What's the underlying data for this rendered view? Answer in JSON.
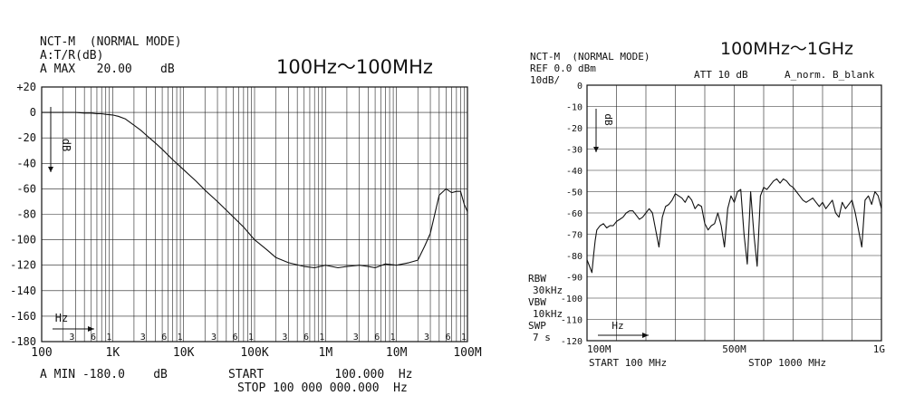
{
  "chart_data": [
    {
      "type": "line",
      "header_lines": [
        "NCT-M  (NORMAL MODE)",
        "A:T/R(dB)",
        "A MAX   20.00    dB"
      ],
      "range_label": "100Hz～100MHz",
      "ylabel": "dB",
      "xlabel": "Hz",
      "x_scale": "log",
      "xlim": [
        100,
        100000000
      ],
      "ylim": [
        -180,
        20
      ],
      "x_tick_labels": [
        "100",
        "1K",
        "10K",
        "100K",
        "1M",
        "10M",
        "100M"
      ],
      "y_tick_labels": [
        "+20",
        "0",
        "-20",
        "-40",
        "-60",
        "-80",
        "-100",
        "-120",
        "-140",
        "-160",
        "-180"
      ],
      "minor_tick_labels": [
        "3",
        "6",
        "1"
      ],
      "footer_left": "A MIN -180.0    dB",
      "footer_start": "START          100.000  Hz",
      "footer_stop": "STOP 100 000 000.000  Hz",
      "grid": true,
      "series": [
        {
          "x": [
            100,
            150,
            200,
            300,
            400,
            500,
            600,
            700,
            800,
            1000,
            1200,
            1500,
            2000,
            2500,
            3000,
            4000,
            5000,
            7000,
            10000,
            15000,
            20000,
            30000,
            50000,
            70000,
            100000,
            150000,
            200000,
            300000,
            500000,
            700000,
            1000000,
            1500000,
            2000000,
            3000000,
            4000000,
            5000000,
            7000000,
            10000000,
            15000000,
            20000000,
            25000000,
            30000000,
            40000000,
            50000000,
            60000000,
            70000000,
            80000000,
            90000000,
            100000000
          ],
          "y": [
            0,
            0,
            0,
            0,
            -0.5,
            -0.5,
            -1,
            -1,
            -1.5,
            -2,
            -3,
            -5,
            -10,
            -14,
            -18,
            -24,
            -29,
            -37,
            -45,
            -54,
            -61,
            -70,
            -82,
            -90,
            -100,
            -108,
            -114,
            -118,
            -121,
            -122,
            -120,
            -122,
            -121,
            -120,
            -121,
            -122,
            -119,
            -120,
            -118,
            -116,
            -105,
            -95,
            -65,
            -60,
            -63,
            -62,
            -62,
            -72,
            -78
          ]
        }
      ]
    },
    {
      "type": "line",
      "header_lines": [
        "NCT-M  (NORMAL MODE)",
        "REF 0.0 dBm",
        "10dB/"
      ],
      "att_label": "ATT 10 dB",
      "trace_label": "A_norm. B_blank",
      "range_label": "100MHz～1GHz",
      "ylabel": "dB",
      "xlabel": "Hz",
      "xlim": [
        100,
        1000
      ],
      "ylim": [
        -120,
        0
      ],
      "x_tick_labels": [
        "100M",
        "500M",
        "1G"
      ],
      "y_tick_labels": [
        "0",
        "-10",
        "-20",
        "-30",
        "-40",
        "-50",
        "-60",
        "-70",
        "-80",
        "-90",
        "-100",
        "-110",
        "-120"
      ],
      "settings_labels": [
        "RBW",
        "30kHz",
        "VBW",
        "10kHz",
        "SWP",
        "7 s"
      ],
      "footer_start": "START 100 MHz",
      "footer_stop": "STOP 1000 MHz",
      "grid": true,
      "series": [
        {
          "x": [
            100,
            110,
            115,
            120,
            125,
            130,
            140,
            150,
            160,
            170,
            180,
            190,
            200,
            210,
            220,
            230,
            240,
            250,
            260,
            270,
            280,
            290,
            300,
            310,
            320,
            330,
            340,
            350,
            360,
            370,
            380,
            390,
            400,
            410,
            420,
            430,
            440,
            450,
            460,
            470,
            480,
            490,
            500,
            510,
            520,
            530,
            540,
            550,
            560,
            570,
            580,
            590,
            600,
            610,
            620,
            630,
            640,
            650,
            660,
            670,
            680,
            690,
            700,
            710,
            720,
            730,
            740,
            750,
            760,
            770,
            780,
            790,
            800,
            810,
            820,
            830,
            840,
            850,
            860,
            870,
            880,
            890,
            900,
            910,
            920,
            930,
            940,
            950,
            960,
            970,
            980,
            990,
            1000
          ],
          "y": [
            -82,
            -86,
            -88,
            -80,
            -73,
            -68,
            -66,
            -65,
            -67,
            -66,
            -66,
            -64,
            -63,
            -62,
            -60,
            -59,
            -59,
            -61,
            -63,
            -62,
            -60,
            -58,
            -60,
            -68,
            -76,
            -62,
            -57,
            -56,
            -54,
            -51,
            -52,
            -53,
            -55,
            -52,
            -54,
            -58,
            -56,
            -57,
            -65,
            -68,
            -66,
            -65,
            -60,
            -66,
            -76,
            -58,
            -52,
            -55,
            -50,
            -49,
            -70,
            -84,
            -50,
            -70,
            -85,
            -52,
            -48,
            -49,
            -47,
            -45,
            -44,
            -46,
            -44,
            -45,
            -47,
            -48,
            -50,
            -52,
            -54,
            -55,
            -54,
            -53,
            -55,
            -57,
            -55,
            -58,
            -56,
            -54,
            -60,
            -62,
            -55,
            -58,
            -56,
            -54,
            -60,
            -68,
            -76,
            -54,
            -52,
            -56,
            -50,
            -52,
            -58
          ]
        }
      ]
    }
  ]
}
